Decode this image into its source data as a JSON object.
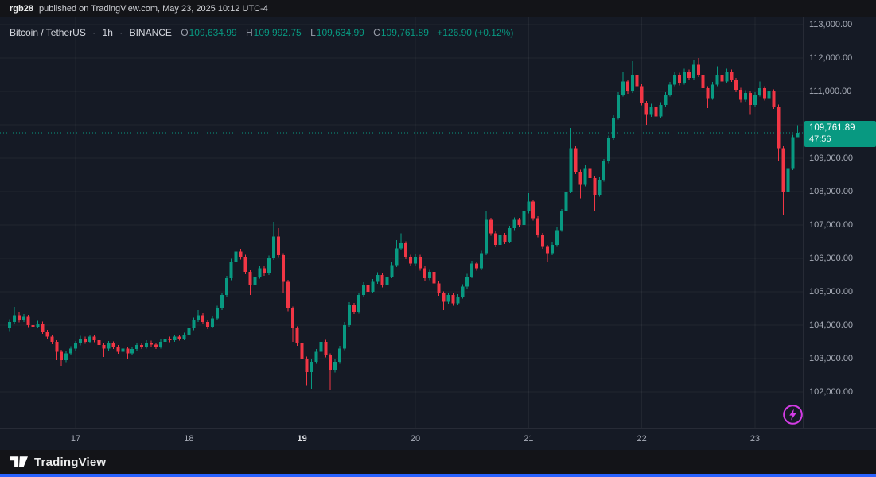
{
  "header": {
    "username": "rgb28",
    "published_text": "published on TradingView.com, May 23, 2025 10:12 UTC-4"
  },
  "legend": {
    "symbol": "Bitcoin / TetherUS",
    "sep": "·",
    "interval": "1h",
    "exchange": "BINANCE",
    "o_label": "O",
    "o": "109,634.99",
    "h_label": "H",
    "h": "109,992.75",
    "l_label": "L",
    "l": "109,634.99",
    "c_label": "C",
    "c": "109,761.89",
    "change": "+126.90 (+0.12%)"
  },
  "price_scale": {
    "labels": [
      "113,000.00",
      "112,000.00",
      "111,000.00",
      "110,000.00",
      "109,000.00",
      "108,000.00",
      "107,000.00",
      "106,000.00",
      "105,000.00",
      "104,000.00",
      "103,000.00",
      "102,000.00"
    ],
    "current_price": "109,761.89",
    "countdown": "47:56"
  },
  "time_scale": {
    "labels": [
      {
        "text": "17",
        "index": 14,
        "strong": false
      },
      {
        "text": "18",
        "index": 38,
        "strong": false
      },
      {
        "text": "19",
        "index": 62,
        "strong": true
      },
      {
        "text": "20",
        "index": 86,
        "strong": false
      },
      {
        "text": "21",
        "index": 110,
        "strong": false
      },
      {
        "text": "22",
        "index": 134,
        "strong": false
      },
      {
        "text": "23",
        "index": 158,
        "strong": false
      }
    ]
  },
  "footer": {
    "brand": "TradingView"
  },
  "colors": {
    "up": "#089981",
    "down": "#f23645",
    "badge_bg": "#089981",
    "accent_blue": "#2962ff",
    "flash": "#d43ce6",
    "grid": "rgba(255,255,255,0.055)"
  },
  "chart_data": {
    "type": "candlestick",
    "title": "Bitcoin / TetherUS",
    "interval": "1h",
    "exchange": "BINANCE",
    "legend_ohlc": {
      "open": 109634.99,
      "high": 109992.75,
      "low": 109634.99,
      "close": 109761.89,
      "change": 126.9,
      "change_pct": 0.12
    },
    "price_axis": {
      "ticks": [
        113000,
        112000,
        111000,
        110000,
        109000,
        108000,
        107000,
        106000,
        105000,
        104000,
        103000,
        102000
      ],
      "visible_range": [
        101500,
        113300
      ]
    },
    "x_axis": {
      "day_labels": [
        "17",
        "18",
        "19",
        "20",
        "21",
        "22",
        "23"
      ],
      "label_candle_index": [
        14,
        38,
        62,
        86,
        110,
        134,
        158
      ]
    },
    "last": {
      "open": 109634.99,
      "high": 109992.75,
      "low": 109634.99,
      "close": 109761.89,
      "countdown": "47:56"
    },
    "candles": [
      [
        103900,
        104180,
        103820,
        104100
      ],
      [
        104100,
        104550,
        104040,
        104300
      ],
      [
        104300,
        104380,
        104080,
        104150
      ],
      [
        104150,
        104330,
        104090,
        104250
      ],
      [
        104250,
        104310,
        103940,
        104000
      ],
      [
        104000,
        104080,
        103880,
        103950
      ],
      [
        103950,
        104130,
        103900,
        104050
      ],
      [
        104050,
        104110,
        103740,
        103800
      ],
      [
        103800,
        103860,
        103580,
        103650
      ],
      [
        103650,
        103710,
        103430,
        103500
      ],
      [
        103500,
        103550,
        102950,
        103200
      ],
      [
        103200,
        103260,
        102780,
        102950
      ],
      [
        102950,
        103230,
        102890,
        103150
      ],
      [
        103150,
        103370,
        103090,
        103300
      ],
      [
        103300,
        103520,
        103240,
        103450
      ],
      [
        103450,
        103680,
        103390,
        103600
      ],
      [
        103600,
        103660,
        103440,
        103500
      ],
      [
        103500,
        103720,
        103450,
        103650
      ],
      [
        103650,
        103710,
        103490,
        103550
      ],
      [
        103550,
        103600,
        103340,
        103400
      ],
      [
        103400,
        103450,
        103050,
        103300
      ],
      [
        103300,
        103520,
        103240,
        103450
      ],
      [
        103450,
        103510,
        103290,
        103350
      ],
      [
        103350,
        103410,
        103140,
        103200
      ],
      [
        103200,
        103370,
        103150,
        103300
      ],
      [
        103300,
        103350,
        102980,
        103150
      ],
      [
        103150,
        103350,
        103100,
        103280
      ],
      [
        103280,
        103460,
        103220,
        103400
      ],
      [
        103400,
        103470,
        103290,
        103350
      ],
      [
        103350,
        103550,
        103300,
        103480
      ],
      [
        103480,
        103540,
        103360,
        103420
      ],
      [
        103420,
        103480,
        103290,
        103350
      ],
      [
        103350,
        103570,
        103300,
        103500
      ],
      [
        103500,
        103670,
        103450,
        103600
      ],
      [
        103600,
        103660,
        103490,
        103550
      ],
      [
        103550,
        103720,
        103500,
        103650
      ],
      [
        103650,
        103710,
        103540,
        103600
      ],
      [
        103600,
        103770,
        103550,
        103700
      ],
      [
        103700,
        103980,
        103650,
        103900
      ],
      [
        103900,
        104230,
        103850,
        104150
      ],
      [
        104150,
        104450,
        104090,
        104300
      ],
      [
        104300,
        104360,
        104040,
        104100
      ],
      [
        104100,
        104160,
        103880,
        103950
      ],
      [
        103950,
        104280,
        103900,
        104200
      ],
      [
        104200,
        104580,
        104150,
        104500
      ],
      [
        104500,
        104980,
        104450,
        104900
      ],
      [
        104900,
        105480,
        104850,
        105400
      ],
      [
        105400,
        105990,
        105350,
        105900
      ],
      [
        105900,
        106400,
        105840,
        106200
      ],
      [
        106200,
        106280,
        105960,
        106050
      ],
      [
        106050,
        106110,
        105520,
        105600
      ],
      [
        105600,
        105660,
        104900,
        105200
      ],
      [
        105200,
        105530,
        105140,
        105450
      ],
      [
        105450,
        105780,
        105390,
        105700
      ],
      [
        105700,
        105760,
        105480,
        105550
      ],
      [
        105550,
        106080,
        105500,
        106000
      ],
      [
        106000,
        107100,
        105950,
        106650
      ],
      [
        106650,
        106900,
        106030,
        106100
      ],
      [
        106100,
        106160,
        104950,
        105300
      ],
      [
        105300,
        105360,
        104420,
        104500
      ],
      [
        104500,
        104560,
        103500,
        103900
      ],
      [
        103900,
        103960,
        103380,
        103450
      ],
      [
        103450,
        103510,
        102700,
        103000
      ],
      [
        103000,
        103060,
        102200,
        102600
      ],
      [
        102600,
        102980,
        102100,
        102900
      ],
      [
        102900,
        103280,
        102840,
        103200
      ],
      [
        103200,
        103580,
        103150,
        103500
      ],
      [
        103500,
        103560,
        103030,
        103100
      ],
      [
        103100,
        103160,
        102050,
        102650
      ],
      [
        102650,
        102980,
        102580,
        102900
      ],
      [
        102900,
        103380,
        102850,
        103300
      ],
      [
        103300,
        104090,
        103250,
        104000
      ],
      [
        104000,
        104690,
        103950,
        104600
      ],
      [
        104600,
        104670,
        104330,
        104400
      ],
      [
        104400,
        104980,
        104340,
        104900
      ],
      [
        104900,
        105290,
        104840,
        105200
      ],
      [
        105200,
        105270,
        104930,
        105000
      ],
      [
        105000,
        105380,
        104950,
        105300
      ],
      [
        105300,
        105580,
        105240,
        105500
      ],
      [
        105500,
        105560,
        105130,
        105200
      ],
      [
        105200,
        105530,
        105150,
        105450
      ],
      [
        105450,
        105880,
        105400,
        105800
      ],
      [
        105800,
        106550,
        105740,
        106300
      ],
      [
        106300,
        106750,
        106240,
        106450
      ],
      [
        106450,
        106510,
        105980,
        106050
      ],
      [
        106050,
        106110,
        105780,
        105850
      ],
      [
        105850,
        106130,
        105790,
        106050
      ],
      [
        106050,
        106110,
        105630,
        105700
      ],
      [
        105700,
        105760,
        105330,
        105400
      ],
      [
        105400,
        105680,
        105340,
        105600
      ],
      [
        105600,
        105660,
        105180,
        105250
      ],
      [
        105250,
        105310,
        104880,
        104950
      ],
      [
        104950,
        105010,
        104450,
        104700
      ],
      [
        104700,
        104980,
        104640,
        104900
      ],
      [
        104900,
        104960,
        104580,
        104650
      ],
      [
        104650,
        104930,
        104590,
        104850
      ],
      [
        104850,
        105230,
        104800,
        105150
      ],
      [
        105150,
        105530,
        105100,
        105450
      ],
      [
        105450,
        105930,
        105400,
        105850
      ],
      [
        105850,
        105910,
        105630,
        105700
      ],
      [
        105700,
        106230,
        105650,
        106150
      ],
      [
        106150,
        107400,
        106100,
        107150
      ],
      [
        107150,
        107210,
        106680,
        106750
      ],
      [
        106750,
        106810,
        106330,
        106400
      ],
      [
        106400,
        106780,
        106340,
        106700
      ],
      [
        106700,
        106760,
        106430,
        106500
      ],
      [
        106500,
        106980,
        106450,
        106900
      ],
      [
        106900,
        107230,
        106840,
        107150
      ],
      [
        107150,
        107210,
        106930,
        107000
      ],
      [
        107000,
        107480,
        106950,
        107400
      ],
      [
        107400,
        107950,
        107340,
        107700
      ],
      [
        107700,
        107760,
        107130,
        107200
      ],
      [
        107200,
        107260,
        106630,
        106700
      ],
      [
        106700,
        106760,
        106280,
        106350
      ],
      [
        106350,
        106410,
        105900,
        106150
      ],
      [
        106150,
        106480,
        106090,
        106400
      ],
      [
        106400,
        106930,
        106350,
        106850
      ],
      [
        106850,
        107480,
        106800,
        107400
      ],
      [
        107400,
        108090,
        107350,
        108000
      ],
      [
        108000,
        109900,
        107950,
        109300
      ],
      [
        109300,
        109360,
        108520,
        108600
      ],
      [
        108600,
        108660,
        107800,
        108200
      ],
      [
        108200,
        108780,
        108150,
        108700
      ],
      [
        108700,
        108760,
        108330,
        108400
      ],
      [
        108400,
        108460,
        107400,
        107900
      ],
      [
        107900,
        108430,
        107850,
        108350
      ],
      [
        108350,
        108980,
        108300,
        108900
      ],
      [
        108900,
        109680,
        108850,
        109600
      ],
      [
        109600,
        110280,
        109550,
        110200
      ],
      [
        110200,
        110980,
        110150,
        110900
      ],
      [
        110900,
        111600,
        110840,
        111300
      ],
      [
        111300,
        111360,
        110930,
        111000
      ],
      [
        111000,
        111900,
        110950,
        111500
      ],
      [
        111500,
        111560,
        111080,
        111150
      ],
      [
        111150,
        111210,
        110580,
        110650
      ],
      [
        110650,
        110710,
        110000,
        110300
      ],
      [
        110300,
        110630,
        110240,
        110550
      ],
      [
        110550,
        110610,
        110180,
        110250
      ],
      [
        110250,
        110680,
        110200,
        110600
      ],
      [
        110600,
        110980,
        110550,
        110900
      ],
      [
        110900,
        111280,
        110840,
        111200
      ],
      [
        111200,
        111580,
        111150,
        111500
      ],
      [
        111500,
        111560,
        111180,
        111250
      ],
      [
        111250,
        111680,
        111200,
        111600
      ],
      [
        111600,
        111660,
        111330,
        111400
      ],
      [
        111400,
        111950,
        111350,
        111800
      ],
      [
        111800,
        112000,
        111430,
        111500
      ],
      [
        111500,
        111560,
        111030,
        111100
      ],
      [
        111100,
        111160,
        110500,
        110800
      ],
      [
        110800,
        111280,
        110750,
        111200
      ],
      [
        111200,
        111750,
        111150,
        111500
      ],
      [
        111500,
        111560,
        111230,
        111300
      ],
      [
        111300,
        111680,
        111250,
        111600
      ],
      [
        111600,
        111660,
        111280,
        111350
      ],
      [
        111350,
        111410,
        110980,
        111050
      ],
      [
        111050,
        111110,
        110680,
        110750
      ],
      [
        110750,
        111030,
        110690,
        110950
      ],
      [
        110950,
        111010,
        110300,
        110600
      ],
      [
        110600,
        110980,
        110550,
        110900
      ],
      [
        110900,
        111300,
        110840,
        111100
      ],
      [
        111100,
        111160,
        110730,
        110800
      ],
      [
        110800,
        111080,
        110740,
        111000
      ],
      [
        111000,
        111060,
        110480,
        110550
      ],
      [
        110550,
        110610,
        108900,
        109300
      ],
      [
        109300,
        109360,
        107300,
        108000
      ],
      [
        108000,
        108780,
        107950,
        108700
      ],
      [
        108700,
        109700,
        108640,
        109634.99
      ],
      [
        109634.99,
        109992.75,
        109634.99,
        109761.89
      ]
    ]
  }
}
